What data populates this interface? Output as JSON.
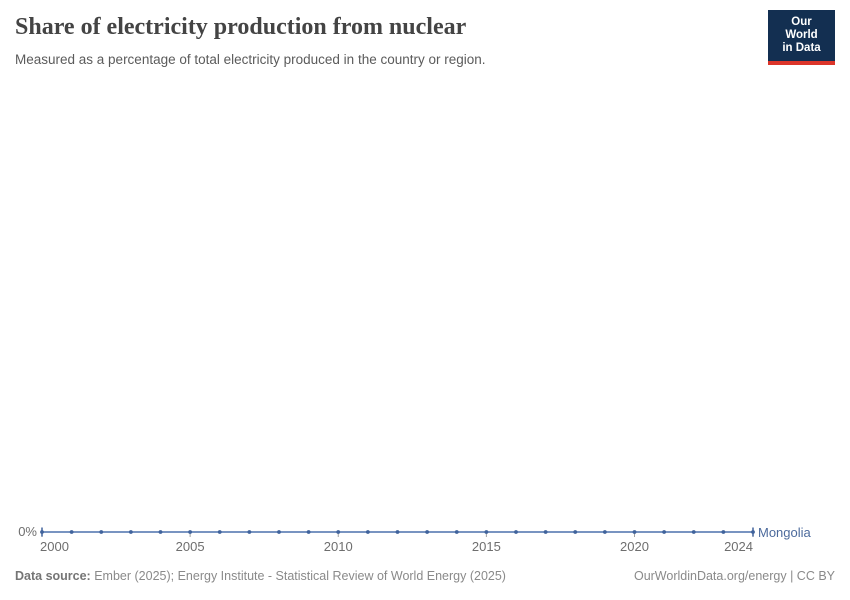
{
  "header": {
    "title": "Share of electricity production from nuclear",
    "subtitle": "Measured as a percentage of total electricity produced in the country or region.",
    "logo_line1": "Our World",
    "logo_line2": "in Data",
    "logo_bg_color": "#132f51",
    "logo_accent_color": "#dc352a"
  },
  "chart_data": {
    "type": "line",
    "title": "Share of electricity production from nuclear",
    "xlabel": "",
    "ylabel": "",
    "unit": "%",
    "x": [
      2000,
      2001,
      2002,
      2003,
      2004,
      2005,
      2006,
      2007,
      2008,
      2009,
      2010,
      2011,
      2012,
      2013,
      2014,
      2015,
      2016,
      2017,
      2018,
      2019,
      2020,
      2021,
      2022,
      2023,
      2024
    ],
    "series": [
      {
        "name": "Mongolia",
        "color": "#4C6A9C",
        "values": [
          0,
          0,
          0,
          0,
          0,
          0,
          0,
          0,
          0,
          0,
          0,
          0,
          0,
          0,
          0,
          0,
          0,
          0,
          0,
          0,
          0,
          0,
          0,
          0,
          0
        ]
      }
    ],
    "markers": true,
    "grid": false,
    "legend_position": "end-of-line",
    "xlim": [
      2000,
      2024
    ],
    "ylim": [
      0,
      0
    ],
    "xticks": [
      {
        "year": 2000,
        "label": "2000"
      },
      {
        "year": 2005,
        "label": "2005"
      },
      {
        "year": 2010,
        "label": "2010"
      },
      {
        "year": 2015,
        "label": "2015"
      },
      {
        "year": 2020,
        "label": "2020"
      },
      {
        "year": 2024,
        "label": "2024"
      }
    ],
    "yticks": [
      "0%"
    ],
    "tick_color": "#a0a0a0",
    "line_color": "#6485b8",
    "marker_color": "#40639c"
  },
  "footer": {
    "source_label": "Data source:",
    "source_text": "Ember (2025); Energy Institute - Statistical Review of World Energy (2025)",
    "url": "OurWorldinData.org/energy",
    "separator": " | ",
    "license": "CC BY"
  }
}
